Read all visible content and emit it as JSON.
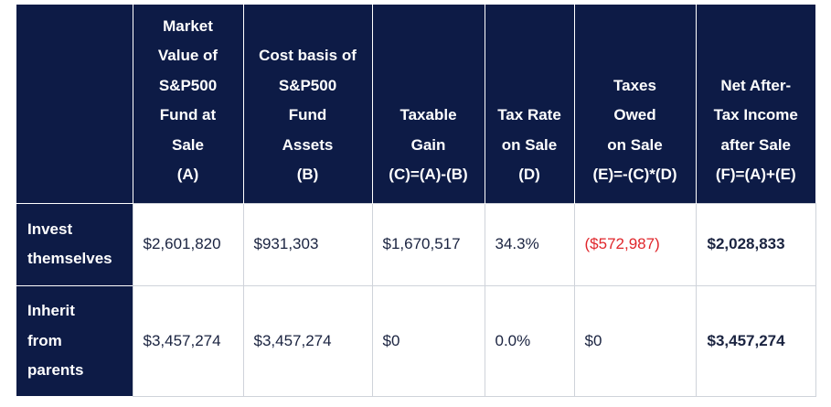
{
  "table": {
    "headers": [
      {
        "lines": []
      },
      {
        "lines": [
          "Market",
          "Value of",
          "S&P500",
          "Fund at",
          "Sale",
          "(A)"
        ]
      },
      {
        "lines": [
          "Cost basis of",
          "S&P500",
          "Fund",
          "Assets",
          "(B)"
        ]
      },
      {
        "lines": [
          "Taxable",
          "Gain",
          "(C)=(A)-(B)"
        ]
      },
      {
        "lines": [
          "Tax Rate",
          "on Sale",
          "(D)"
        ]
      },
      {
        "lines": [
          "Taxes",
          "Owed",
          "on Sale",
          "(E)=-(C)*(D)"
        ]
      },
      {
        "lines": [
          "Net After-",
          "Tax Income",
          "after Sale",
          "(F)=(A)+(E)"
        ]
      }
    ],
    "rows": [
      {
        "label_lines": [
          "Invest",
          "themselves"
        ],
        "market_value": "$2,601,820",
        "cost_basis": "$931,303",
        "taxable_gain": "$1,670,517",
        "tax_rate": "34.3%",
        "taxes_owed": "($572,987)",
        "net_income": "$2,028,833"
      },
      {
        "label_lines": [
          "Inherit",
          "from",
          "parents"
        ],
        "market_value": "$3,457,274",
        "cost_basis": "$3,457,274",
        "taxable_gain": "$0",
        "tax_rate": "0.0%",
        "taxes_owed": "$0",
        "net_income": "$3,457,274"
      }
    ],
    "colors": {
      "header_bg": "#0d1b46",
      "header_text": "#ffffff",
      "negative_text": "#e0262b",
      "cell_text": "#1a2340"
    }
  }
}
